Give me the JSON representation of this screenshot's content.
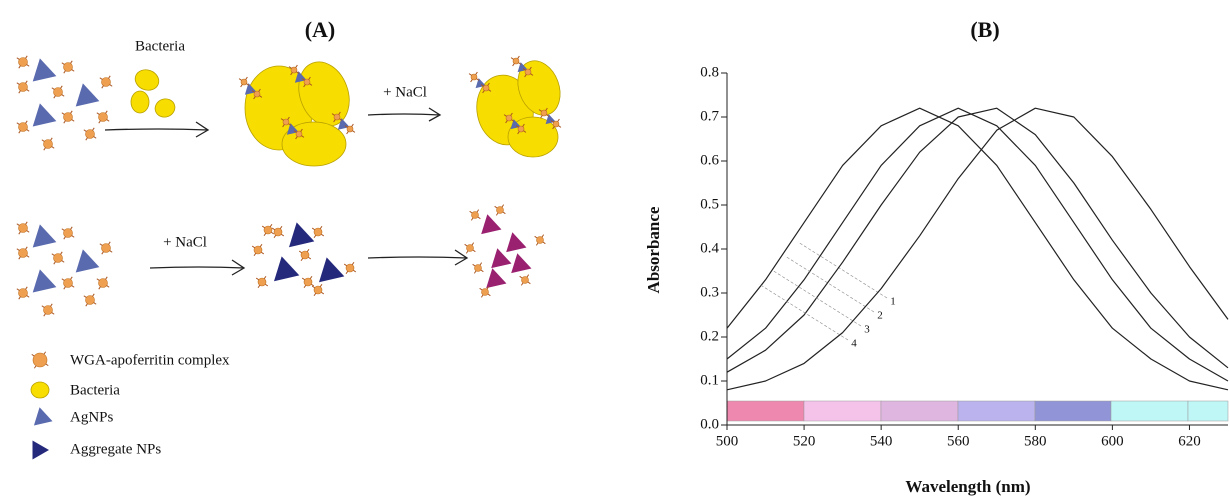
{
  "panel_a": {
    "label": "(A)",
    "step_labels": [
      "Bacteria",
      "+ NaCl",
      "+ NaCl"
    ],
    "legend": [
      "WGA-apoferritin complex",
      "Bacteria",
      "AgNPs",
      "Aggregate NPs"
    ]
  },
  "chart_data": {
    "type": "line",
    "title": "(B)",
    "x_label": "Wavelength (nm)",
    "y_label": "Absorbance",
    "x": [
      500,
      510,
      520,
      530,
      540,
      550,
      560,
      570,
      580,
      590,
      600,
      610,
      620,
      630
    ],
    "series": [
      {
        "name": "1",
        "color": "#222222",
        "values": [
          0.22,
          0.33,
          0.46,
          0.59,
          0.68,
          0.72,
          0.68,
          0.59,
          0.46,
          0.33,
          0.22,
          0.15,
          0.1,
          0.08
        ]
      },
      {
        "name": "2",
        "color": "#222222",
        "values": [
          0.15,
          0.22,
          0.33,
          0.46,
          0.59,
          0.68,
          0.72,
          0.68,
          0.59,
          0.46,
          0.33,
          0.22,
          0.15,
          0.1
        ]
      },
      {
        "name": "3",
        "color": "#222222",
        "values": [
          0.12,
          0.17,
          0.25,
          0.37,
          0.5,
          0.62,
          0.7,
          0.72,
          0.66,
          0.55,
          0.42,
          0.3,
          0.2,
          0.13
        ]
      },
      {
        "name": "4",
        "color": "#222222",
        "values": [
          0.08,
          0.1,
          0.14,
          0.21,
          0.31,
          0.43,
          0.56,
          0.67,
          0.72,
          0.7,
          0.61,
          0.49,
          0.36,
          0.24
        ]
      }
    ],
    "xlim": [
      500,
      630
    ],
    "ylim": [
      0,
      0.8
    ],
    "xticks": [
      500,
      520,
      540,
      560,
      580,
      600,
      620
    ],
    "yticks": [
      {
        "value": 0,
        "label": "0.0"
      },
      0.1,
      0.2,
      0.3,
      0.4,
      0.5,
      0.6,
      0.7,
      0.8
    ]
  }
}
